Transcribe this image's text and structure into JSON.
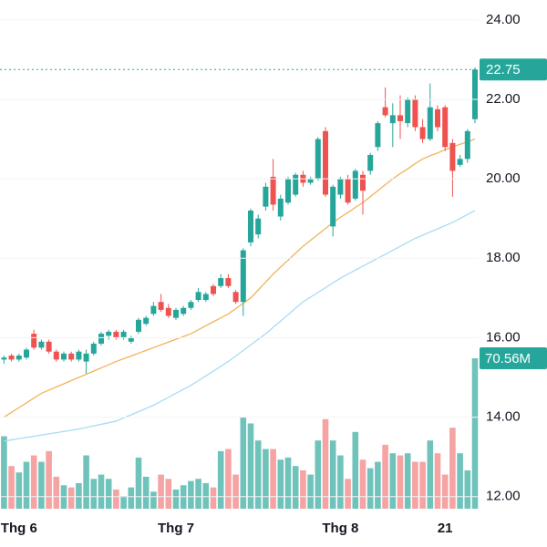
{
  "chart_data": {
    "type": "candlestick",
    "categories": [
      null,
      null,
      "Thg 6",
      null,
      null,
      null,
      null,
      null,
      null,
      null,
      null,
      null,
      null,
      null,
      null,
      null,
      null,
      null,
      null,
      null,
      null,
      null,
      null,
      "Thg 7",
      null,
      null,
      null,
      null,
      null,
      null,
      null,
      null,
      null,
      null,
      null,
      null,
      null,
      null,
      null,
      null,
      null,
      null,
      null,
      null,
      null,
      "Thg 8",
      null,
      null,
      null,
      null,
      null,
      null,
      null,
      null,
      null,
      null,
      null,
      null,
      null,
      "21",
      null,
      null,
      null,
      null
    ],
    "open": [
      15.45,
      15.55,
      15.45,
      15.5,
      16.1,
      15.75,
      15.9,
      15.65,
      15.45,
      15.6,
      15.45,
      15.4,
      15.6,
      15.85,
      16.05,
      16.15,
      16.0,
      15.9,
      16.15,
      16.35,
      16.6,
      16.9,
      16.75,
      16.5,
      16.6,
      16.75,
      16.95,
      16.95,
      17.3,
      17.3,
      17.5,
      17.15,
      16.9,
      18.4,
      18.6,
      19.3,
      20.05,
      19.05,
      19.4,
      19.6,
      20.1,
      19.9,
      20.0,
      21.2,
      18.8,
      19.6,
      20.0,
      19.5,
      20.1,
      20.2,
      20.8,
      21.8,
      21.4,
      21.6,
      21.4,
      22.0,
      21.3,
      21.0,
      21.75,
      21.8,
      20.9,
      20.35,
      20.5,
      21.5
    ],
    "high": [
      15.55,
      15.6,
      15.6,
      15.75,
      16.2,
      15.95,
      15.95,
      15.7,
      15.65,
      15.65,
      15.7,
      15.7,
      15.9,
      16.15,
      16.2,
      16.2,
      16.2,
      16.05,
      16.5,
      16.55,
      16.9,
      17.1,
      16.85,
      16.75,
      16.8,
      16.95,
      17.25,
      17.15,
      17.35,
      17.6,
      17.6,
      17.2,
      18.25,
      19.25,
      19.1,
      19.9,
      20.5,
      19.6,
      20.05,
      20.15,
      20.2,
      20.05,
      21.05,
      21.3,
      19.85,
      20.05,
      20.1,
      20.25,
      20.2,
      20.65,
      21.45,
      22.3,
      21.9,
      22.1,
      22.05,
      22.1,
      21.5,
      22.4,
      21.85,
      21.85,
      21.0,
      20.6,
      21.25,
      22.8
    ],
    "low": [
      15.35,
      15.4,
      15.4,
      15.45,
      15.7,
      15.7,
      15.6,
      15.4,
      15.4,
      15.4,
      15.4,
      15.1,
      15.55,
      15.8,
      15.95,
      15.95,
      15.95,
      15.85,
      16.1,
      16.3,
      16.55,
      16.65,
      16.5,
      16.45,
      16.55,
      16.7,
      16.9,
      16.9,
      17.05,
      17.25,
      17.25,
      16.85,
      16.55,
      18.3,
      18.5,
      19.2,
      19.2,
      18.95,
      19.35,
      19.55,
      19.8,
      19.85,
      19.95,
      19.55,
      18.55,
      19.5,
      19.35,
      19.45,
      19.1,
      20.1,
      20.7,
      21.55,
      20.8,
      21.0,
      21.3,
      21.2,
      20.9,
      20.95,
      21.2,
      20.7,
      19.55,
      20.3,
      20.4,
      21.4
    ],
    "close": [
      15.5,
      15.45,
      15.55,
      15.7,
      15.75,
      15.9,
      15.65,
      15.45,
      15.6,
      15.45,
      15.65,
      15.6,
      15.85,
      16.1,
      16.15,
      16.0,
      16.15,
      16.0,
      16.45,
      16.5,
      16.8,
      16.7,
      16.55,
      16.7,
      16.75,
      16.9,
      17.15,
      17.1,
      17.1,
      17.5,
      17.3,
      16.9,
      18.2,
      19.2,
      19.0,
      19.8,
      19.35,
      19.5,
      20.0,
      20.1,
      19.9,
      20.0,
      21.0,
      19.6,
      19.8,
      20.0,
      19.4,
      20.2,
      19.7,
      20.6,
      21.4,
      21.6,
      21.6,
      21.45,
      22.0,
      21.3,
      21.0,
      21.8,
      21.3,
      20.8,
      20.2,
      20.5,
      21.2,
      22.75
    ],
    "volume": {
      "values": [
        34,
        20,
        17,
        22,
        25,
        22,
        27,
        15,
        11,
        10,
        12,
        25,
        14,
        16,
        14,
        9,
        6,
        10,
        24,
        15,
        8,
        16,
        14,
        9,
        11,
        13,
        14,
        12,
        10,
        27,
        28,
        16,
        43,
        40,
        32,
        28,
        28,
        23,
        24,
        20,
        18,
        16,
        32,
        42,
        32,
        25,
        14,
        36,
        23,
        19,
        22,
        30,
        26,
        25,
        26,
        22,
        22,
        32,
        26,
        16,
        38,
        26,
        18,
        70.56
      ],
      "value_labels": [
        null,
        null,
        null,
        null,
        null,
        null,
        null,
        null,
        null,
        null,
        null,
        null,
        null,
        null,
        null,
        null,
        null,
        null,
        null,
        null,
        null,
        null,
        null,
        null,
        null,
        null,
        null,
        null,
        null,
        null,
        null,
        null,
        null,
        null,
        null,
        null,
        null,
        null,
        null,
        null,
        null,
        null,
        null,
        null,
        null,
        null,
        null,
        null,
        null,
        null,
        null,
        null,
        null,
        null,
        null,
        null,
        null,
        null,
        null,
        null,
        null,
        null,
        null,
        "70.56M"
      ]
    },
    "ma_lines": [
      {
        "color": "#f0b45a",
        "values": [
          14.0,
          14.12,
          14.24,
          14.36,
          14.48,
          14.6,
          14.68,
          14.76,
          14.84,
          14.92,
          15.0,
          15.08,
          15.16,
          15.24,
          15.32,
          15.4,
          15.47,
          15.54,
          15.61,
          15.68,
          15.75,
          15.82,
          15.89,
          15.96,
          16.03,
          16.1,
          16.2,
          16.3,
          16.4,
          16.5,
          16.6,
          16.73,
          16.87,
          17.0,
          17.2,
          17.4,
          17.6,
          17.78,
          17.95,
          18.13,
          18.3,
          18.45,
          18.6,
          18.75,
          18.9,
          19.03,
          19.15,
          19.28,
          19.4,
          19.55,
          19.7,
          19.85,
          20.0,
          20.13,
          20.25,
          20.38,
          20.5,
          20.58,
          20.65,
          20.73,
          20.8,
          20.87,
          20.93,
          21.0
        ]
      },
      {
        "color": "#a8dcf5",
        "values": [
          13.4,
          13.43,
          13.46,
          13.49,
          13.52,
          13.55,
          13.58,
          13.61,
          13.64,
          13.67,
          13.7,
          13.74,
          13.78,
          13.82,
          13.86,
          13.9,
          13.98,
          14.06,
          14.14,
          14.22,
          14.3,
          14.4,
          14.5,
          14.6,
          14.7,
          14.8,
          14.92,
          15.04,
          15.16,
          15.28,
          15.4,
          15.54,
          15.68,
          15.82,
          15.96,
          16.1,
          16.26,
          16.42,
          16.58,
          16.74,
          16.9,
          17.02,
          17.14,
          17.26,
          17.38,
          17.5,
          17.6,
          17.7,
          17.8,
          17.9,
          18.0,
          18.1,
          18.2,
          18.3,
          18.4,
          18.5,
          18.58,
          18.66,
          18.74,
          18.82,
          18.9,
          19.0,
          19.1,
          19.2
        ]
      }
    ],
    "up_color": "#26a69a",
    "down_color": "#ef5350",
    "up_volume_color": "#6fc3bb",
    "down_volume_color": "#f5a3a3",
    "last_price": 22.75,
    "ylim": [
      11.65,
      24.5
    ],
    "yticks": [
      {
        "value": 24,
        "label": "24.00"
      },
      {
        "value": 22,
        "label": "22.00"
      },
      {
        "value": 20,
        "label": "20.00"
      },
      {
        "value": 18,
        "label": "18.00"
      },
      {
        "value": 16,
        "label": "16.00"
      },
      {
        "value": 14,
        "label": "14.00"
      },
      {
        "value": 12,
        "label": "12.00"
      }
    ],
    "grid": true
  }
}
